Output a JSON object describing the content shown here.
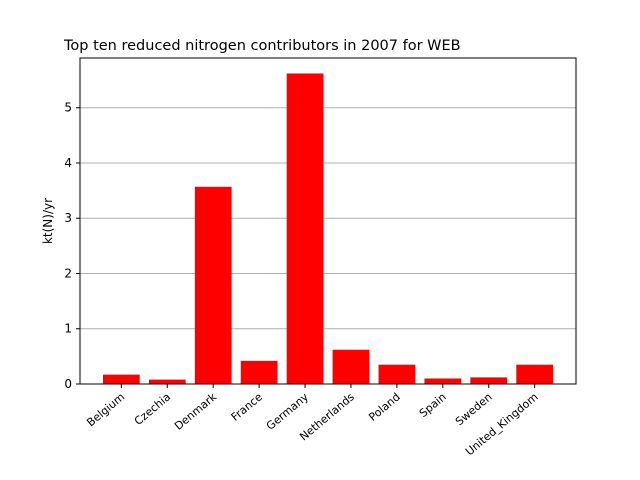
{
  "chart_data": {
    "type": "bar",
    "title": "Top ten reduced nitrogen contributors in 2007 for  WEB",
    "xlabel": "",
    "ylabel": "kt(N)/yr",
    "categories": [
      "Belgium",
      "Czechia",
      "Denmark",
      "France",
      "Germany",
      "Netherlands",
      "Poland",
      "Spain",
      "Sweden",
      "United_Kingdom"
    ],
    "values": [
      0.17,
      0.08,
      3.57,
      0.42,
      5.62,
      0.62,
      0.35,
      0.1,
      0.12,
      0.35
    ],
    "ylim": [
      0,
      5.9
    ],
    "yticks": [
      0,
      1,
      2,
      3,
      4,
      5
    ],
    "ytick_labels": [
      "0",
      "1",
      "2",
      "3",
      "4",
      "5"
    ],
    "grid": "y",
    "bar_color": "#ff0000",
    "grid_color": "#b0b0b0"
  }
}
